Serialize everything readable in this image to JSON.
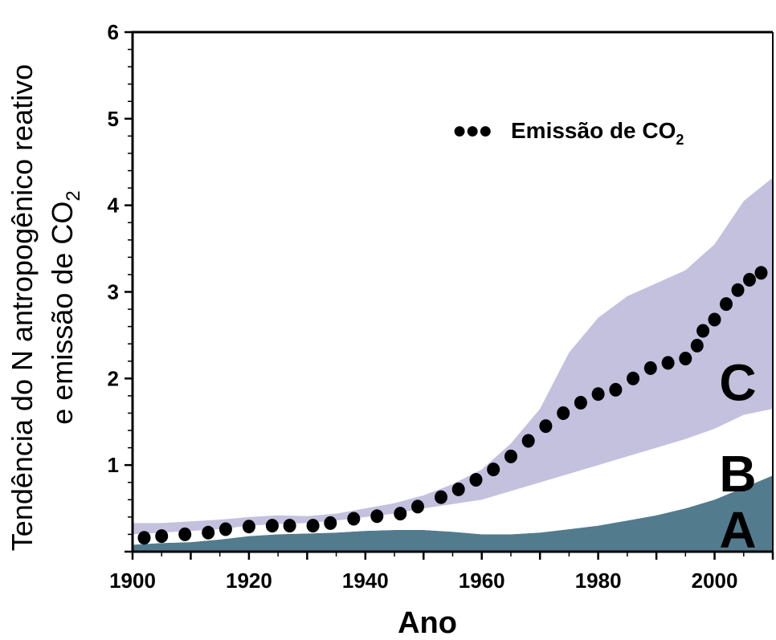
{
  "chart_data": {
    "type": "area",
    "xlabel": "Ano",
    "ylabel_line1": "Tendência do N antropogênico reativo",
    "ylabel_line2": "e emissão de CO",
    "ylabel_line2_sub": "2",
    "xlim": [
      1900,
      2010
    ],
    "ylim": [
      0,
      6
    ],
    "xticks": [
      1900,
      1920,
      1940,
      1960,
      1980,
      2000
    ],
    "yticks": [
      1,
      2,
      3,
      4,
      5,
      6
    ],
    "legend": {
      "marker_text": "●●●",
      "text": "Emissão de CO",
      "sub": "2",
      "placement": "top-right"
    },
    "bands": [
      {
        "name": "A",
        "color": "#537b8e",
        "x": [
          1900,
          1905,
          1910,
          1915,
          1920,
          1925,
          1930,
          1935,
          1940,
          1945,
          1950,
          1955,
          1960,
          1965,
          1970,
          1975,
          1980,
          1985,
          1990,
          1995,
          2000,
          2005,
          2010
        ],
        "lower": [
          0.0,
          0.0,
          0.0,
          0.0,
          0.0,
          0.0,
          0.0,
          0.0,
          0.0,
          0.0,
          0.0,
          0.0,
          0.0,
          0.0,
          0.0,
          0.0,
          0.0,
          0.0,
          0.0,
          0.0,
          0.0,
          0.0,
          0.0
        ],
        "upper": [
          0.08,
          0.1,
          0.11,
          0.14,
          0.18,
          0.2,
          0.21,
          0.22,
          0.24,
          0.25,
          0.25,
          0.23,
          0.2,
          0.2,
          0.22,
          0.26,
          0.3,
          0.36,
          0.42,
          0.5,
          0.6,
          0.74,
          0.88
        ]
      },
      {
        "name": "B",
        "color": "#ffffff",
        "x": [
          1900,
          1905,
          1910,
          1915,
          1920,
          1925,
          1930,
          1935,
          1940,
          1945,
          1950,
          1955,
          1960,
          1965,
          1970,
          1975,
          1980,
          1985,
          1990,
          1995,
          2000,
          2005,
          2010
        ],
        "lower": [
          0.08,
          0.1,
          0.11,
          0.14,
          0.18,
          0.2,
          0.21,
          0.22,
          0.24,
          0.25,
          0.25,
          0.23,
          0.2,
          0.2,
          0.22,
          0.26,
          0.3,
          0.36,
          0.42,
          0.5,
          0.6,
          0.74,
          0.88
        ],
        "upper": [
          0.2,
          0.22,
          0.24,
          0.26,
          0.3,
          0.32,
          0.33,
          0.36,
          0.4,
          0.44,
          0.5,
          0.55,
          0.6,
          0.7,
          0.8,
          0.9,
          1.0,
          1.1,
          1.2,
          1.3,
          1.42,
          1.58,
          1.65
        ]
      },
      {
        "name": "C",
        "color": "#c3c1de",
        "x": [
          1900,
          1905,
          1910,
          1915,
          1920,
          1925,
          1930,
          1935,
          1940,
          1945,
          1950,
          1955,
          1960,
          1965,
          1970,
          1975,
          1980,
          1985,
          1990,
          1995,
          2000,
          2005,
          2010
        ],
        "lower": [
          0.2,
          0.22,
          0.24,
          0.26,
          0.3,
          0.32,
          0.33,
          0.36,
          0.4,
          0.44,
          0.5,
          0.55,
          0.6,
          0.7,
          0.8,
          0.9,
          1.0,
          1.1,
          1.2,
          1.3,
          1.42,
          1.58,
          1.65
        ],
        "upper": [
          0.33,
          0.33,
          0.35,
          0.37,
          0.4,
          0.42,
          0.41,
          0.44,
          0.5,
          0.56,
          0.65,
          0.78,
          0.95,
          1.25,
          1.65,
          2.3,
          2.7,
          2.95,
          3.1,
          3.25,
          3.55,
          4.05,
          4.32
        ]
      }
    ],
    "series": [
      {
        "name": "Emissão de CO2",
        "marker": "dot",
        "x": [
          1902,
          1905,
          1909,
          1913,
          1916,
          1920,
          1924,
          1927,
          1931,
          1934,
          1938,
          1942,
          1946,
          1949,
          1953,
          1956,
          1959,
          1962,
          1965,
          1968,
          1971,
          1974,
          1977,
          1980,
          1983,
          1986,
          1989,
          1992,
          1995,
          1997,
          1998,
          2000,
          2002,
          2004,
          2006,
          2008
        ],
        "values": [
          0.16,
          0.18,
          0.2,
          0.22,
          0.26,
          0.29,
          0.3,
          0.3,
          0.3,
          0.33,
          0.38,
          0.41,
          0.44,
          0.52,
          0.63,
          0.72,
          0.83,
          0.95,
          1.1,
          1.28,
          1.45,
          1.6,
          1.72,
          1.82,
          1.87,
          2.0,
          2.12,
          2.18,
          2.23,
          2.38,
          2.55,
          2.68,
          2.86,
          3.02,
          3.14,
          3.22
        ]
      }
    ],
    "region_labels": [
      {
        "text": "C",
        "x": 2004,
        "y": 1.95
      },
      {
        "text": "B",
        "x": 2004,
        "y": 0.9
      },
      {
        "text": "A",
        "x": 2004,
        "y": 0.25
      }
    ]
  }
}
